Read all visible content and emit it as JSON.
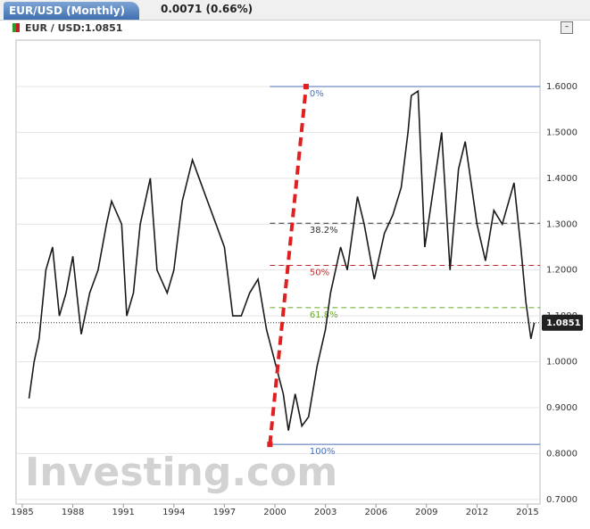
{
  "header": {
    "tab": "EUR/USD (Monthly)",
    "change": "0.0071 (0.66%)",
    "legend": "EUR / USD:1.0851"
  },
  "chart_data": {
    "type": "line",
    "color": "#1a1a1a",
    "watermark": "Investing.com",
    "x": [
      1985.4,
      1985.7,
      1986.0,
      1986.4,
      1986.8,
      1987.2,
      1987.6,
      1988.0,
      1988.5,
      1989.0,
      1989.5,
      1990.0,
      1990.3,
      1990.9,
      1991.2,
      1991.6,
      1992.0,
      1992.6,
      1993.0,
      1993.6,
      1994.0,
      1994.5,
      1995.1,
      1995.5,
      1996.0,
      1996.5,
      1997.0,
      1997.5,
      1998.0,
      1998.5,
      1999.0,
      1999.5,
      2000.0,
      2000.5,
      2000.8,
      2001.2,
      2001.6,
      2002.0,
      2002.5,
      2003.0,
      2003.3,
      2003.9,
      2004.3,
      2004.9,
      2005.3,
      2005.9,
      2006.5,
      2007.0,
      2007.5,
      2007.9,
      2008.1,
      2008.5,
      2008.9,
      2009.5,
      2009.9,
      2010.4,
      2010.9,
      2011.3,
      2012.0,
      2012.5,
      2013.0,
      2013.5,
      2014.2,
      2014.6,
      2014.9,
      2015.2,
      2015.4
    ],
    "values": [
      0.92,
      1.0,
      1.05,
      1.2,
      1.25,
      1.1,
      1.15,
      1.23,
      1.06,
      1.15,
      1.2,
      1.3,
      1.35,
      1.3,
      1.1,
      1.15,
      1.3,
      1.4,
      1.2,
      1.15,
      1.2,
      1.35,
      1.44,
      1.4,
      1.35,
      1.3,
      1.25,
      1.1,
      1.1,
      1.15,
      1.18,
      1.07,
      1.0,
      0.93,
      0.85,
      0.93,
      0.86,
      0.88,
      0.99,
      1.07,
      1.15,
      1.25,
      1.2,
      1.36,
      1.3,
      1.18,
      1.28,
      1.32,
      1.38,
      1.5,
      1.58,
      1.59,
      1.25,
      1.4,
      1.5,
      1.2,
      1.42,
      1.48,
      1.3,
      1.22,
      1.33,
      1.3,
      1.39,
      1.25,
      1.13,
      1.05,
      1.0851
    ],
    "current": 1.0851,
    "xlim": [
      1984.63,
      2015.74
    ],
    "ylim": [
      0.69,
      1.701
    ],
    "xticks": [
      1985,
      1988,
      1991,
      1994,
      1997,
      2000,
      2003,
      2006,
      2009,
      2012,
      2015
    ],
    "yticks": [
      {
        "value": 0.7,
        "label": "0.7000"
      },
      {
        "value": 0.8,
        "label": "0.8000"
      },
      {
        "value": 0.9,
        "label": "0.9000"
      },
      {
        "value": 1.0,
        "label": "1.0000"
      },
      {
        "value": 1.1,
        "label": "1.1000"
      },
      {
        "value": 1.2,
        "label": "1.2000"
      },
      {
        "value": 1.3,
        "label": "1.3000"
      },
      {
        "value": 1.4,
        "label": "1.4000"
      },
      {
        "value": 1.5,
        "label": "1.5000"
      },
      {
        "value": 1.6,
        "label": "1.6000"
      }
    ],
    "grid": true,
    "fibonacci": {
      "color": "#e02020",
      "start": [
        1999.7,
        0.82
      ],
      "end": [
        2001.85,
        1.6
      ],
      "levels": [
        {
          "value": 0,
          "label": "0%",
          "color": "#4a6fb5"
        },
        {
          "value": 38.2,
          "label": "38.2%",
          "color": "#333333"
        },
        {
          "value": 50,
          "label": "50%",
          "color": "#c03030"
        },
        {
          "value": 61.8,
          "label": "61.8%",
          "color": "#66aa22"
        },
        {
          "value": 100,
          "label": "100%",
          "color": "#4a6fb5"
        }
      ]
    }
  }
}
